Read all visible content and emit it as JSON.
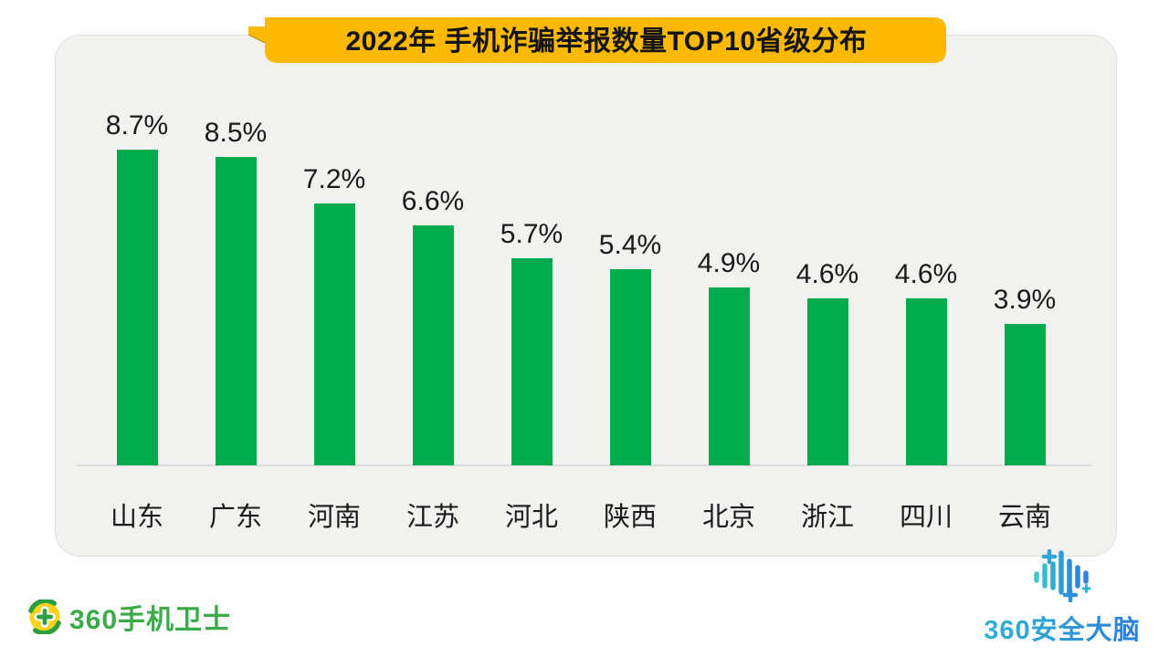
{
  "title": "2022年 手机诈骗举报数量TOP10省级分布",
  "chart_data": {
    "type": "bar",
    "title": "2022年 手机诈骗举报数量TOP10省级分布",
    "categories": [
      "山东",
      "广东",
      "河南",
      "江苏",
      "河北",
      "陕西",
      "北京",
      "浙江",
      "四川",
      "云南"
    ],
    "values": [
      8.7,
      8.5,
      7.2,
      6.6,
      5.7,
      5.4,
      4.9,
      4.6,
      4.6,
      3.9
    ],
    "value_labels": [
      "8.7%",
      "8.5%",
      "7.2%",
      "6.6%",
      "5.7%",
      "5.4%",
      "4.9%",
      "4.6%",
      "4.6%",
      "3.9%"
    ],
    "unit": "%",
    "xlabel": "",
    "ylabel": "",
    "ylim": [
      0,
      10
    ],
    "grid": false,
    "legend": false,
    "bar_color": "#00AB4E"
  },
  "colors": {
    "banner_bg": "#FBB900",
    "banner_fold_edge": "#9a7a00",
    "card_bg": "#F1F1F0",
    "bar_green": "#00AB4E",
    "axis_line": "#dcdcdc",
    "logo_green": "#3BAB4A",
    "logo_blue_start": "#2FB3D4",
    "logo_blue_end": "#2C7FD9"
  },
  "footer": {
    "left_logo_text": "360手机卫士",
    "right_logo_text": "360安全大脑"
  },
  "icons": {
    "left_logo_icon": "360-shield-ball-icon",
    "right_logo_icon": "soundwave-brain-icon"
  }
}
